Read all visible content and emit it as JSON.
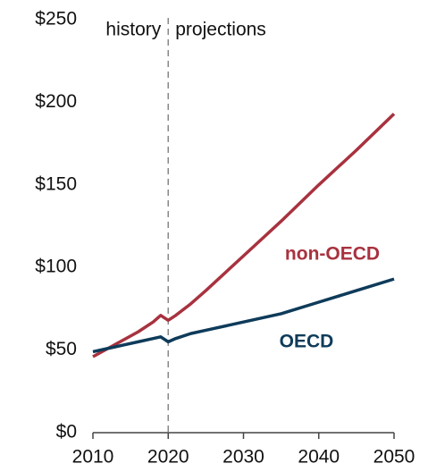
{
  "chart_data": {
    "type": "line",
    "x": [
      2010,
      2012,
      2014,
      2016,
      2018,
      2019,
      2020,
      2021,
      2023,
      2025,
      2030,
      2035,
      2040,
      2045,
      2050
    ],
    "series": [
      {
        "name": "non-OECD",
        "color": "#a8323f",
        "values": [
          46,
          51,
          56,
          61,
          67,
          71,
          68,
          71,
          78,
          86,
          107,
          128,
          150,
          171,
          193
        ]
      },
      {
        "name": "OECD",
        "color": "#0e3b5a",
        "values": [
          49,
          51,
          53,
          55,
          57,
          58,
          55,
          57,
          60,
          62,
          67,
          72,
          79,
          86,
          93
        ]
      }
    ],
    "xlim": [
      2010,
      2050
    ],
    "xticks": [
      2010,
      2020,
      2030,
      2040,
      2050
    ],
    "ylim": [
      0,
      250
    ],
    "yticks": [
      {
        "value": 0,
        "label": "$0"
      },
      {
        "value": 50,
        "label": "$50"
      },
      {
        "value": 100,
        "label": "$100"
      },
      {
        "value": 150,
        "label": "$150"
      },
      {
        "value": 200,
        "label": "$200"
      },
      {
        "value": 250,
        "label": "$250"
      }
    ],
    "divider": 2020,
    "annotations": [
      "history",
      "projections"
    ],
    "grid": false
  }
}
